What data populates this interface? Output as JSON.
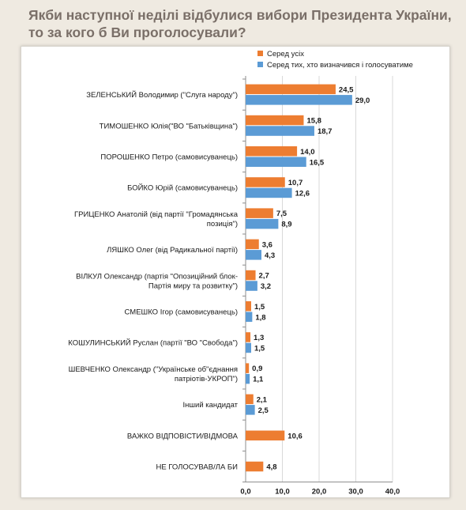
{
  "header": {
    "title_line1": "Якби наступної неділі відбулися вибори Президента України,",
    "title_line2": "то за кого б Ви проголосували?"
  },
  "colors": {
    "series_all": "#ed7d31",
    "series_decided": "#5b9bd5",
    "gridline": "#d9d9d9",
    "axis": "#8c8c8c"
  },
  "chart_data": {
    "type": "bar",
    "orientation": "horizontal",
    "title": "",
    "xlabel": "",
    "ylabel": "",
    "xlim": [
      0,
      40
    ],
    "x_ticks": [
      "0,0",
      "10,0",
      "20,0",
      "30,0",
      "40,0"
    ],
    "grid": true,
    "legend_position": "top-right",
    "categories": [
      [
        "ЗЕЛЕНСЬКИЙ Володимир (\"Слуга народу\")"
      ],
      [
        "ТИМОШЕНКО Юлія(\"ВО \"Батьківщина\")"
      ],
      [
        "ПОРОШЕНКО Петро (самовисуванець)"
      ],
      [
        "БОЙКО Юрій (самовисуванець)"
      ],
      [
        "ГРИЦЕНКО Анатолій (від партії \"Громадянська",
        "позиція\")"
      ],
      [
        "ЛЯШКО Олег (від Радикальної партії)"
      ],
      [
        "ВІЛКУЛ Олександр (партія \"Опозиційний блок-",
        "Партія миру та розвитку\")"
      ],
      [
        "СМЕШКО Ігор (самовисуванець)"
      ],
      [
        "КОШУЛИНСЬКИЙ Руслан (партії \"ВО \"Свобода\")"
      ],
      [
        "ШЕВЧЕНКО Олександр (\"Українське об\"єднання",
        "патріотів-УКРОП\")"
      ],
      [
        "Інший кандидат"
      ],
      [
        "ВАЖКО ВІДПОВІСТИ/ВІДМОВА"
      ],
      [
        "НЕ ГОЛОСУВАВ/ЛА БИ"
      ]
    ],
    "series": [
      {
        "name": "Серед усіх",
        "values": [
          24.5,
          15.8,
          14.0,
          10.7,
          7.5,
          3.6,
          2.7,
          1.5,
          1.3,
          0.9,
          2.1,
          10.6,
          4.8
        ],
        "labels": [
          "24,5",
          "15,8",
          "14,0",
          "10,7",
          "7,5",
          "3,6",
          "2,7",
          "1,5",
          "1,3",
          "0,9",
          "2,1",
          "10,6",
          "4,8"
        ]
      },
      {
        "name": "Серед тих, хто визначився і голосуватиме",
        "values": [
          29.0,
          18.7,
          16.5,
          12.6,
          8.9,
          4.3,
          3.2,
          1.8,
          1.5,
          1.1,
          2.5,
          null,
          null
        ],
        "labels": [
          "29,0",
          "18,7",
          "16,5",
          "12,6",
          "8,9",
          "4,3",
          "3,2",
          "1,8",
          "1,5",
          "1,1",
          "2,5",
          "",
          ""
        ]
      }
    ]
  }
}
